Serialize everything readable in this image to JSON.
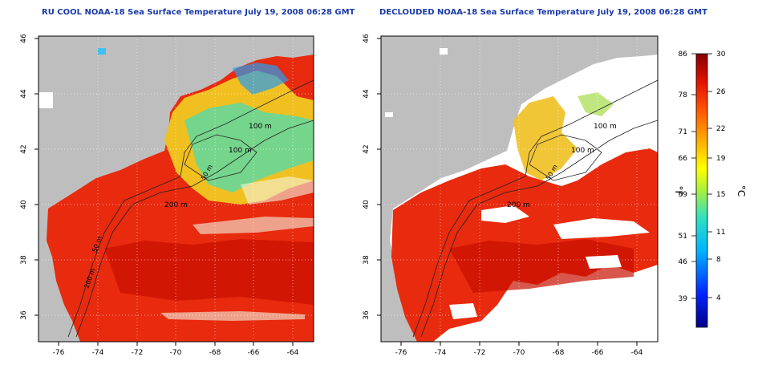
{
  "panels": [
    {
      "title": "RU COOL NOAA-18 Sea Surface Temperature July 19, 2008 06:28 GMT",
      "x_ticks": [
        "-76",
        "-74",
        "-72",
        "-70",
        "-68",
        "-66",
        "-64"
      ],
      "y_ticks": [
        "46",
        "44",
        "42",
        "40",
        "38",
        "36"
      ],
      "contours": [
        "100 m",
        "100 m",
        "50 m",
        "200 m",
        "50 m",
        "200 m"
      ]
    },
    {
      "title": "DECLOUDED NOAA-18 Sea Surface Temperature July 19, 2008 06:28 GMT",
      "x_ticks": [
        "-76",
        "-74",
        "-72",
        "-70",
        "-68",
        "-66",
        "-64"
      ],
      "y_ticks": [
        "46",
        "44",
        "42",
        "40",
        "38",
        "36"
      ],
      "contours": [
        "100 m",
        "100 m",
        "50 m",
        "200 m"
      ]
    }
  ],
  "colorbar": {
    "fahrenheit_ticks": [
      "86",
      "78",
      "71",
      "66",
      "59",
      "51",
      "46",
      "39"
    ],
    "celsius_ticks": [
      "30",
      "26",
      "22",
      "19",
      "15",
      "11",
      "8",
      "4"
    ],
    "fahrenheit_label": "°F",
    "celsius_label": "°C"
  },
  "colors": {
    "land": "#bebebe",
    "warm": "#e82a0e",
    "hot": "#c81000",
    "cloud_white": "#ffffff",
    "title": "#1a3aa8"
  }
}
